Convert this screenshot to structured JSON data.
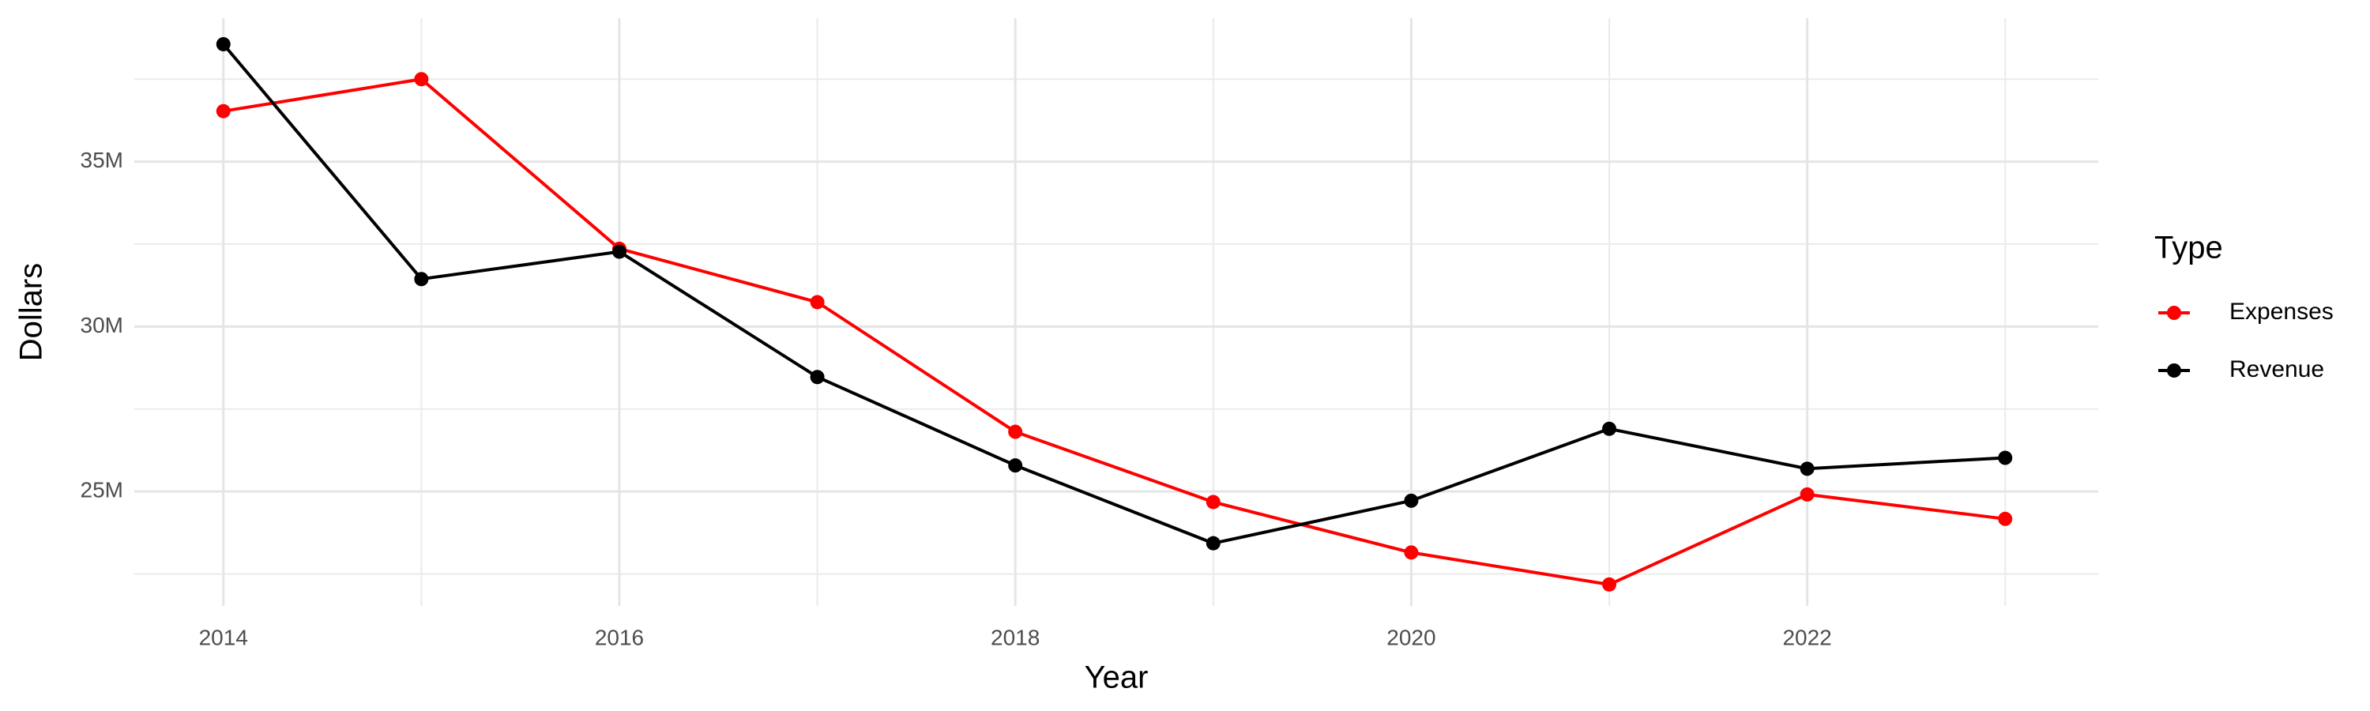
{
  "chart_data": {
    "type": "line",
    "x_label": "Year",
    "y_label": "Dollars",
    "legend_title": "Type",
    "legend_position": "right",
    "grid": true,
    "x": [
      2014,
      2015,
      2016,
      2017,
      2018,
      2019,
      2020,
      2021,
      2022,
      2023
    ],
    "series": [
      {
        "name": "Expenses",
        "color": "#ff0000",
        "values": [
          36530000,
          37500000,
          32360000,
          30740000,
          26810000,
          24680000,
          23150000,
          22180000,
          24910000,
          24170000
        ]
      },
      {
        "name": "Revenue",
        "color": "#000000",
        "values": [
          38560000,
          31440000,
          32270000,
          28470000,
          25790000,
          23430000,
          24720000,
          26900000,
          25690000,
          26020000
        ]
      }
    ],
    "xlim": [
      2013.55,
      2023.47
    ],
    "xticks": [
      2014,
      2016,
      2018,
      2020,
      2022
    ],
    "ylim": [
      21530000,
      39350000
    ],
    "yticks": [
      {
        "value": 25000000,
        "label": "25M"
      },
      {
        "value": 30000000,
        "label": "30M"
      },
      {
        "value": 35000000,
        "label": "35M"
      }
    ]
  }
}
